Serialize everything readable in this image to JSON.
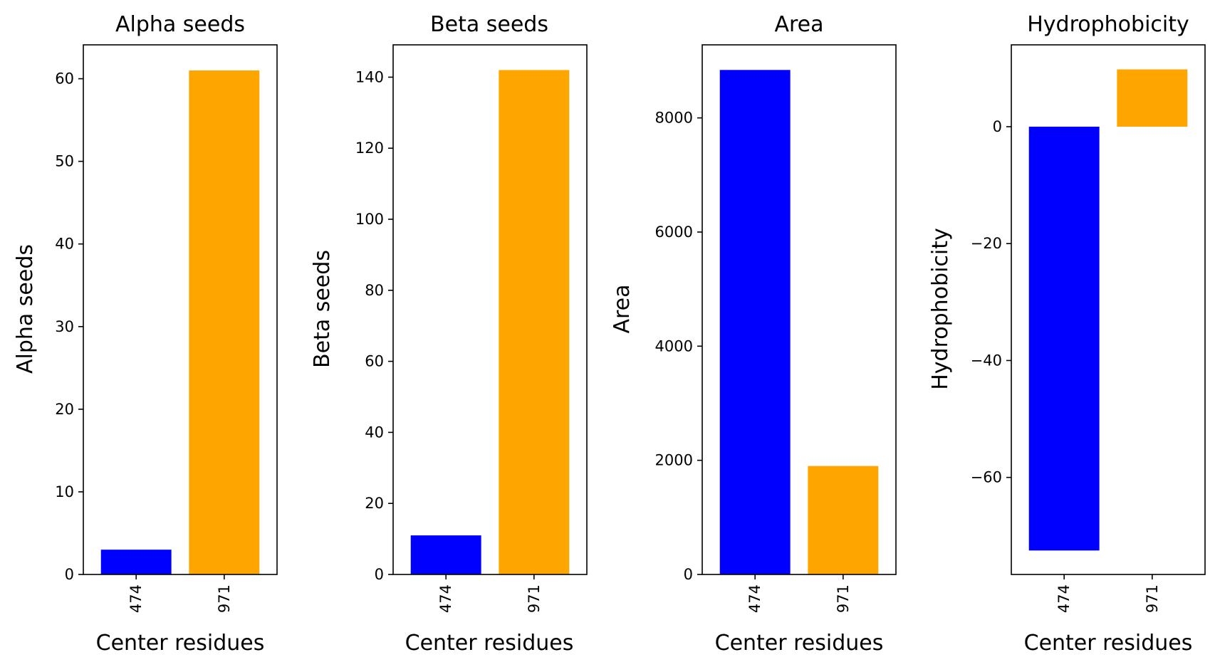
{
  "chart_data": [
    {
      "type": "bar",
      "title": "Alpha seeds",
      "xlabel": "Center residues",
      "ylabel": "Alpha seeds",
      "categories": [
        "474",
        "971"
      ],
      "values": [
        3,
        61
      ],
      "colors": [
        "#0000ff",
        "#ffa500"
      ],
      "ylim": [
        0,
        64.1
      ],
      "yticks": [
        0,
        10,
        20,
        30,
        40,
        50,
        60
      ],
      "ytick_labels": [
        "0",
        "10",
        "20",
        "30",
        "40",
        "50",
        "60"
      ],
      "grid": false,
      "legend": "none"
    },
    {
      "type": "bar",
      "title": "Beta seeds",
      "xlabel": "Center residues",
      "ylabel": "Beta seeds",
      "categories": [
        "474",
        "971"
      ],
      "values": [
        11,
        142
      ],
      "colors": [
        "#0000ff",
        "#ffa500"
      ],
      "ylim": [
        0,
        149.1
      ],
      "yticks": [
        0,
        20,
        40,
        60,
        80,
        100,
        120,
        140
      ],
      "ytick_labels": [
        "0",
        "20",
        "40",
        "60",
        "80",
        "100",
        "120",
        "140"
      ],
      "grid": false,
      "legend": "none"
    },
    {
      "type": "bar",
      "title": "Area",
      "xlabel": "Center residues",
      "ylabel": "Area",
      "categories": [
        "474",
        "971"
      ],
      "values": [
        8840,
        1900
      ],
      "colors": [
        "#0000ff",
        "#ffa500"
      ],
      "ylim": [
        0,
        9280
      ],
      "yticks": [
        0,
        2000,
        4000,
        6000,
        8000
      ],
      "ytick_labels": [
        "0",
        "2000",
        "4000",
        "6000",
        "8000"
      ],
      "grid": false,
      "legend": "none"
    },
    {
      "type": "bar",
      "title": "Hydrophobicity",
      "xlabel": "Center residues",
      "ylabel": "Hydrophobicity",
      "categories": [
        "474",
        "971"
      ],
      "values": [
        -72.5,
        9.8
      ],
      "colors": [
        "#0000ff",
        "#ffa500"
      ],
      "ylim": [
        -76.6,
        14.0
      ],
      "yticks": [
        -60,
        -40,
        -20,
        0
      ],
      "ytick_labels": [
        "−60",
        "−40",
        "−20",
        "0"
      ],
      "grid": false,
      "legend": "none"
    }
  ]
}
